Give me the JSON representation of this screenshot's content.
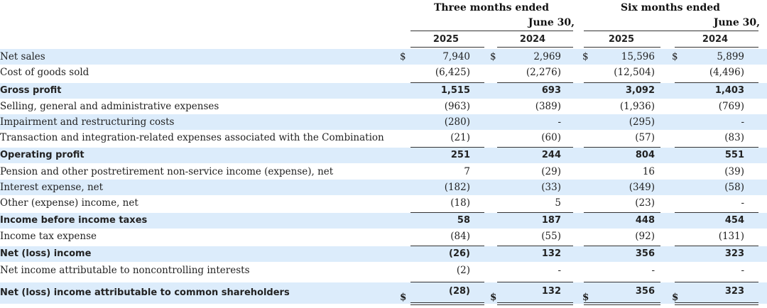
{
  "header": {
    "group1_line1": "Three months ended",
    "group1_line2": "June 30,",
    "group2_line1": "Six months ended",
    "group2_line2": "June 30,",
    "col_2025_a": "2025",
    "col_2024_a": "2024",
    "col_2025_b": "2025",
    "col_2024_b": "2024",
    "currency": "$"
  },
  "rows": [
    {
      "label": "Net sales",
      "bold": false,
      "shade": true,
      "dollar": true,
      "v": [
        "7,940",
        "2,969",
        "15,596",
        "5,899"
      ]
    },
    {
      "label": "Cost of goods sold",
      "bold": false,
      "shade": false,
      "dollar": false,
      "v": [
        "(6,425)",
        "(2,276)",
        "(12,504)",
        "(4,496)"
      ]
    },
    {
      "label": "Gross profit",
      "bold": true,
      "shade": true,
      "dollar": false,
      "v": [
        "1,515",
        "693",
        "3,092",
        "1,403"
      ]
    },
    {
      "label": "Selling, general and administrative expenses",
      "bold": false,
      "shade": false,
      "dollar": false,
      "v": [
        "(963)",
        "(389)",
        "(1,936)",
        "(769)"
      ]
    },
    {
      "label": "Impairment and restructuring costs",
      "bold": false,
      "shade": true,
      "dollar": false,
      "v": [
        "(280)",
        "-",
        "(295)",
        "-"
      ]
    },
    {
      "label": "Transaction and integration-related expenses associated with the Combination",
      "bold": false,
      "shade": false,
      "dollar": false,
      "v": [
        "(21)",
        "(60)",
        "(57)",
        "(83)"
      ]
    },
    {
      "label": "Operating profit",
      "bold": true,
      "shade": true,
      "dollar": false,
      "v": [
        "251",
        "244",
        "804",
        "551"
      ]
    },
    {
      "label": "Pension and other postretirement non-service income (expense), net",
      "bold": false,
      "shade": false,
      "dollar": false,
      "v": [
        "7",
        "(29)",
        "16",
        "(39)"
      ]
    },
    {
      "label": "Interest expense, net",
      "bold": false,
      "shade": true,
      "dollar": false,
      "v": [
        "(182)",
        "(33)",
        "(349)",
        "(58)"
      ]
    },
    {
      "label": "Other (expense) income, net",
      "bold": false,
      "shade": false,
      "dollar": false,
      "v": [
        "(18)",
        "5",
        "(23)",
        "-"
      ]
    },
    {
      "label": "Income before income taxes",
      "bold": true,
      "shade": true,
      "dollar": false,
      "v": [
        "58",
        "187",
        "448",
        "454"
      ]
    },
    {
      "label": "Income tax expense",
      "bold": false,
      "shade": false,
      "dollar": false,
      "v": [
        "(84)",
        "(55)",
        "(92)",
        "(131)"
      ]
    },
    {
      "label": "Net (loss) income",
      "bold": true,
      "shade": true,
      "dollar": false,
      "v": [
        "(26)",
        "132",
        "356",
        "323"
      ]
    },
    {
      "label": "Net income attributable to noncontrolling interests",
      "bold": false,
      "shade": false,
      "dollar": false,
      "v": [
        "(2)",
        "-",
        "-",
        "-"
      ]
    },
    {
      "label": "Net (loss) income attributable to common shareholders",
      "bold": true,
      "shade": true,
      "dollar": true,
      "v": [
        "(28)",
        "132",
        "356",
        "323"
      ]
    }
  ]
}
